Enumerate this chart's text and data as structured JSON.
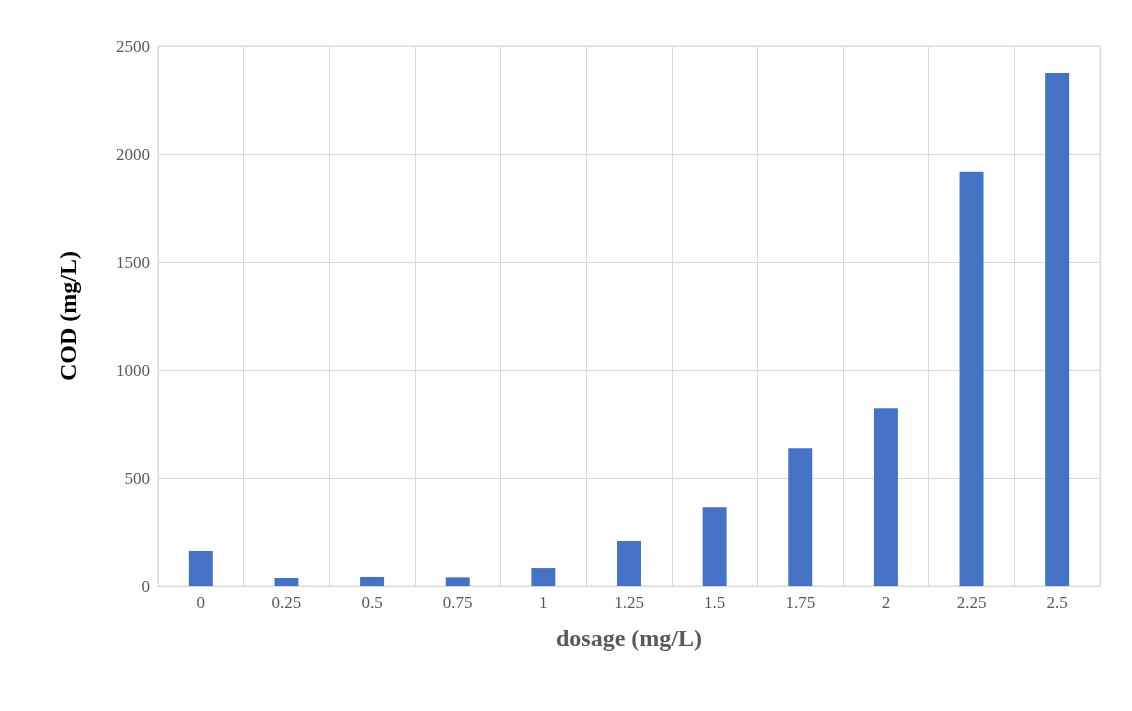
{
  "chart_data": {
    "type": "bar",
    "xlabel": "dosage (mg/L)",
    "ylabel": "COD (mg/L)",
    "categories": [
      "0",
      "0.25",
      "0.5",
      "0.75",
      "1",
      "1.25",
      "1.5",
      "1.75",
      "2",
      "2.25",
      "2.5"
    ],
    "values": [
      162,
      37,
      42,
      40,
      83,
      208,
      365,
      638,
      823,
      1918,
      2375
    ],
    "color": "#4472c4",
    "ylim": [
      0,
      2500
    ],
    "yticks": [
      0,
      500,
      1000,
      1500,
      2000,
      2500
    ],
    "grid": true
  }
}
